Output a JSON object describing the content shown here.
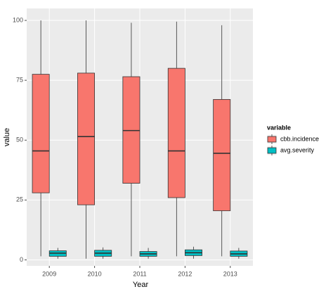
{
  "chart_data": {
    "type": "box",
    "x_label": "Year",
    "y_label": "value",
    "categories": [
      "2009",
      "2010",
      "2011",
      "2012",
      "2013"
    ],
    "legend_title": "variable",
    "series": [
      {
        "name": "cbb.incidence",
        "color": "#F8766D",
        "min": [
          1.5,
          0.5,
          1.5,
          1.5,
          1.5
        ],
        "q1": [
          28,
          23,
          32,
          26,
          20.5
        ],
        "median": [
          45.5,
          51.5,
          54,
          45.5,
          44.5
        ],
        "q3": [
          77.5,
          78,
          76.5,
          80,
          67
        ],
        "max": [
          100,
          100,
          99,
          99.5,
          98
        ]
      },
      {
        "name": "avg.severity",
        "color": "#00BFC4",
        "min": [
          0.5,
          0.5,
          0.5,
          0.5,
          0.5
        ],
        "q1": [
          1.5,
          1.5,
          1.5,
          1.8,
          1.5
        ],
        "median": [
          2.8,
          2.8,
          2.5,
          3,
          2.5
        ],
        "q3": [
          3.8,
          4,
          3.5,
          4.2,
          3.7
        ],
        "max": [
          5,
          5.2,
          5,
          5.5,
          5
        ]
      }
    ],
    "ylim": [
      -2.5,
      105
    ],
    "yticks": [
      0,
      25,
      50,
      75,
      100
    ],
    "grid": true
  }
}
